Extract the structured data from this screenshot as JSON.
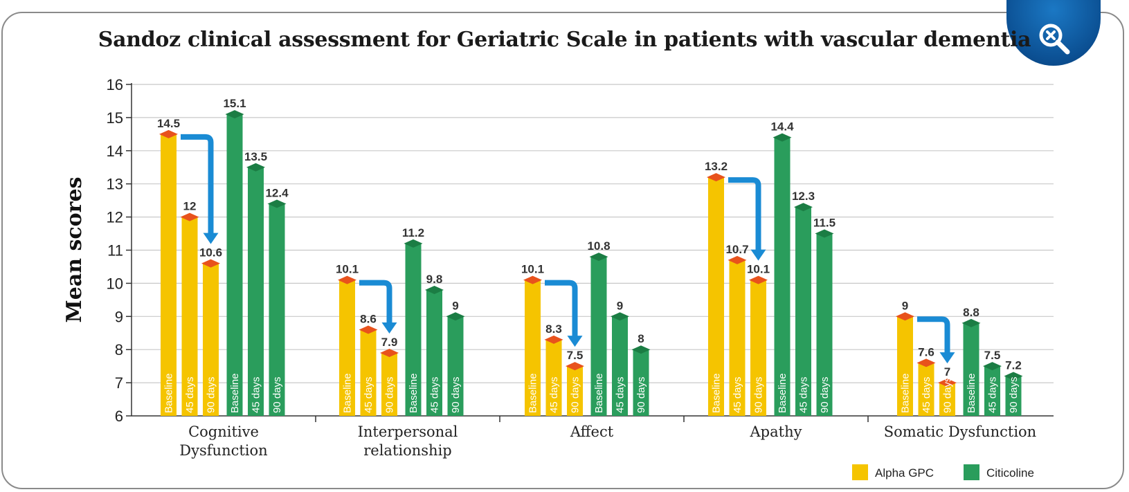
{
  "title": "Sandoz clinical assessment for Geriatric Scale in patients with vascular dementia",
  "zoom_icon": "zoom-out-magnifier-icon",
  "colors": {
    "alpha": "#f5c400",
    "alpha_top": "#e8521c",
    "citi": "#2a9d5c",
    "citi_top": "#1b7d44",
    "arrow": "#1a8bd4"
  },
  "chart_data": {
    "type": "bar",
    "title": "Sandoz clinical assessment for Geriatric Scale in patients with vascular dementia",
    "ylabel": "Mean scores",
    "xlabel": "",
    "ylim": [
      6,
      16
    ],
    "yticks": [
      6,
      7,
      8,
      9,
      10,
      11,
      12,
      13,
      14,
      15,
      16
    ],
    "grid": true,
    "legend_position": "bottom-right",
    "categories": [
      "Cognitive Dysfunction",
      "Interpersonal relationship",
      "Affect",
      "Apathy",
      "Somatic Dysfunction"
    ],
    "category_lines": [
      [
        "Cognitive",
        "Dysfunction"
      ],
      [
        "Interpersonal",
        "relationship"
      ],
      [
        "Affect"
      ],
      [
        "Apathy"
      ],
      [
        "Somatic Dysfunction"
      ]
    ],
    "timepoints": [
      "Baseline",
      "45 days",
      "90 days"
    ],
    "series": [
      {
        "name": "Alpha GPC",
        "key": "alpha",
        "values": [
          [
            14.5,
            12,
            10.6
          ],
          [
            10.1,
            8.6,
            7.9
          ],
          [
            10.1,
            8.3,
            7.5
          ],
          [
            13.2,
            10.7,
            10.1
          ],
          [
            9,
            7.6,
            7
          ]
        ]
      },
      {
        "name": "Citicoline",
        "key": "citi",
        "values": [
          [
            15.1,
            13.5,
            12.4
          ],
          [
            11.2,
            9.8,
            9
          ],
          [
            10.8,
            9,
            8
          ],
          [
            14.4,
            12.3,
            11.5
          ],
          [
            8.8,
            7.5,
            7.2
          ]
        ]
      }
    ],
    "value_labels": [
      [
        [
          "14.5",
          "12",
          "10.6"
        ],
        [
          "15.1",
          "13.5",
          "12.4"
        ]
      ],
      [
        [
          "10.1",
          "8.6",
          "7.9"
        ],
        [
          "11.2",
          "9.8",
          "9"
        ]
      ],
      [
        [
          "10.1",
          "8.3",
          "7.5"
        ],
        [
          "10.8",
          "9",
          "8"
        ]
      ],
      [
        [
          "13.2",
          "10.7",
          "10.1"
        ],
        [
          "14.4",
          "12.3",
          "11.5"
        ]
      ],
      [
        [
          "9",
          "7.6",
          "7"
        ],
        [
          "8.8",
          "7.5",
          "7.2"
        ]
      ]
    ],
    "legend": [
      "Alpha GPC",
      "Citicoline"
    ]
  }
}
